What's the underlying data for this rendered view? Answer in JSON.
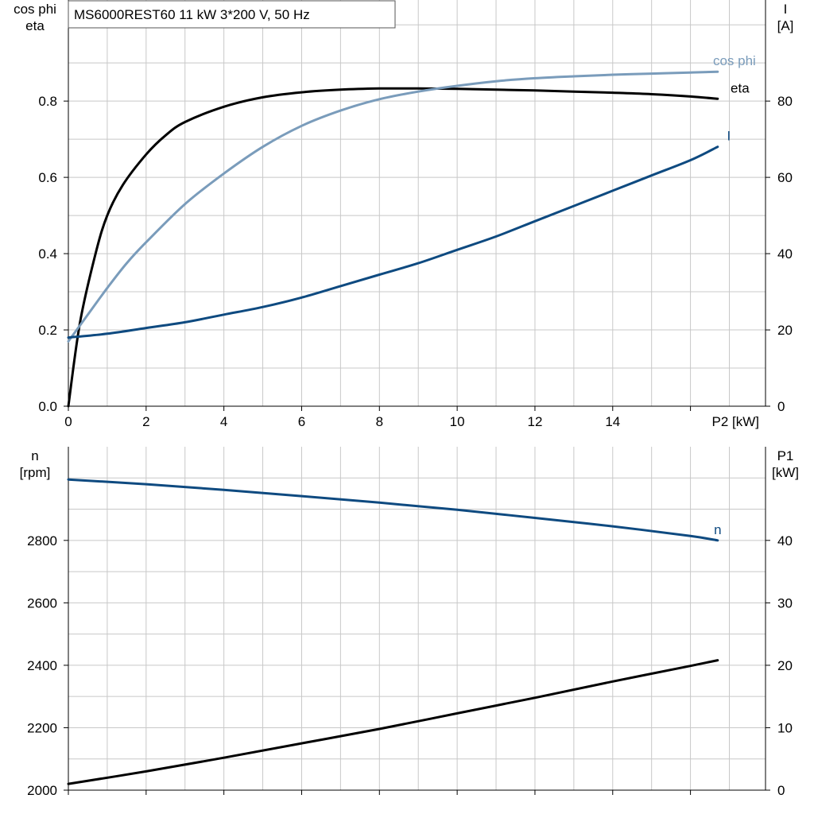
{
  "title": "MS6000REST60   11 kW   3*200 V, 50 Hz",
  "colors": {
    "eta": "#000000",
    "cos_phi": "#7a9cbb",
    "current": "#0e4a80",
    "speed": "#0e4a80",
    "p1": "#000000",
    "grid": "#c8c8c8",
    "axis": "#000000"
  },
  "chart_data": [
    {
      "type": "line",
      "title": "MS6000REST60   11 kW   3*200 V, 50 Hz",
      "xlabel": "P2 [kW]",
      "xlim": [
        0,
        17.93
      ],
      "x_ticks": [
        "0",
        "2",
        "4",
        "6",
        "8",
        "10",
        "12",
        "14"
      ],
      "x_tick_values": [
        0,
        2,
        4,
        6,
        8,
        10,
        12,
        14
      ],
      "grid": true,
      "left_axis": {
        "label_lines": [
          "cos phi",
          "eta"
        ],
        "ylim": [
          0,
          1.065
        ],
        "ticks": [
          "0.0",
          "0.2",
          "0.4",
          "0.6",
          "0.8"
        ],
        "tick_values": [
          0,
          0.2,
          0.4,
          0.6,
          0.8
        ]
      },
      "right_axis": {
        "label_lines": [
          "I",
          "[A]"
        ],
        "ylim": [
          0,
          106.5
        ],
        "ticks": [
          "0",
          "20",
          "40",
          "60",
          "80"
        ],
        "tick_values": [
          0,
          20,
          40,
          60,
          80
        ]
      },
      "series": [
        {
          "name": "eta",
          "axis": "left",
          "x": [
            0,
            0.3,
            0.7,
            1.0,
            1.4,
            2.0,
            2.5,
            3.0,
            4.0,
            5.0,
            6.0,
            7.0,
            8.0,
            9.0,
            10.0,
            11.0,
            12.0,
            13.0,
            14.0,
            15.0,
            16.0,
            16.7
          ],
          "y": [
            0.0,
            0.22,
            0.4,
            0.5,
            0.58,
            0.66,
            0.71,
            0.745,
            0.785,
            0.81,
            0.823,
            0.83,
            0.833,
            0.833,
            0.832,
            0.83,
            0.828,
            0.825,
            0.822,
            0.818,
            0.812,
            0.806
          ]
        },
        {
          "name": "cos phi",
          "axis": "left",
          "x": [
            0,
            0.5,
            1.0,
            1.5,
            2.0,
            3.0,
            4.0,
            5.0,
            6.0,
            7.0,
            8.0,
            9.0,
            10.0,
            11.0,
            12.0,
            13.0,
            14.0,
            15.0,
            16.0,
            16.7
          ],
          "y": [
            0.17,
            0.24,
            0.31,
            0.375,
            0.43,
            0.53,
            0.61,
            0.68,
            0.735,
            0.775,
            0.805,
            0.825,
            0.84,
            0.852,
            0.86,
            0.865,
            0.869,
            0.872,
            0.875,
            0.877
          ]
        },
        {
          "name": "I",
          "axis": "right",
          "x": [
            0,
            1,
            2,
            3,
            4,
            5,
            6,
            7,
            8,
            9,
            10,
            11,
            12,
            13,
            14,
            15,
            16,
            16.7
          ],
          "y": [
            18.0,
            19.0,
            20.5,
            22.0,
            24.0,
            26.0,
            28.5,
            31.5,
            34.5,
            37.5,
            41.0,
            44.5,
            48.5,
            52.5,
            56.5,
            60.5,
            64.5,
            68.0
          ]
        }
      ]
    },
    {
      "type": "line",
      "xlim": [
        0,
        17.93
      ],
      "grid": true,
      "left_axis": {
        "label_lines": [
          "n",
          "[rpm]"
        ],
        "ylim": [
          2000,
          3100
        ],
        "ticks": [
          "2000",
          "2200",
          "2400",
          "2600",
          "2800"
        ],
        "tick_values": [
          2000,
          2200,
          2400,
          2600,
          2800
        ]
      },
      "right_axis": {
        "label_lines": [
          "P1",
          "[kW]"
        ],
        "ylim": [
          0,
          55
        ],
        "ticks": [
          "0",
          "10",
          "20",
          "30",
          "40"
        ],
        "tick_values": [
          0,
          10,
          20,
          30,
          40
        ]
      },
      "series": [
        {
          "name": "n",
          "axis": "left",
          "x": [
            0,
            2,
            4,
            6,
            8,
            10,
            12,
            14,
            16,
            16.7
          ],
          "y": [
            2995,
            2980,
            2962,
            2942,
            2921,
            2898,
            2872,
            2845,
            2814,
            2800
          ]
        },
        {
          "name": "",
          "axis": "right",
          "x": [
            0,
            2,
            4,
            6,
            8,
            10,
            12,
            14,
            16,
            16.7
          ],
          "y": [
            1.0,
            3.0,
            5.2,
            7.5,
            9.8,
            12.3,
            14.8,
            17.4,
            19.9,
            20.8
          ]
        }
      ]
    }
  ]
}
